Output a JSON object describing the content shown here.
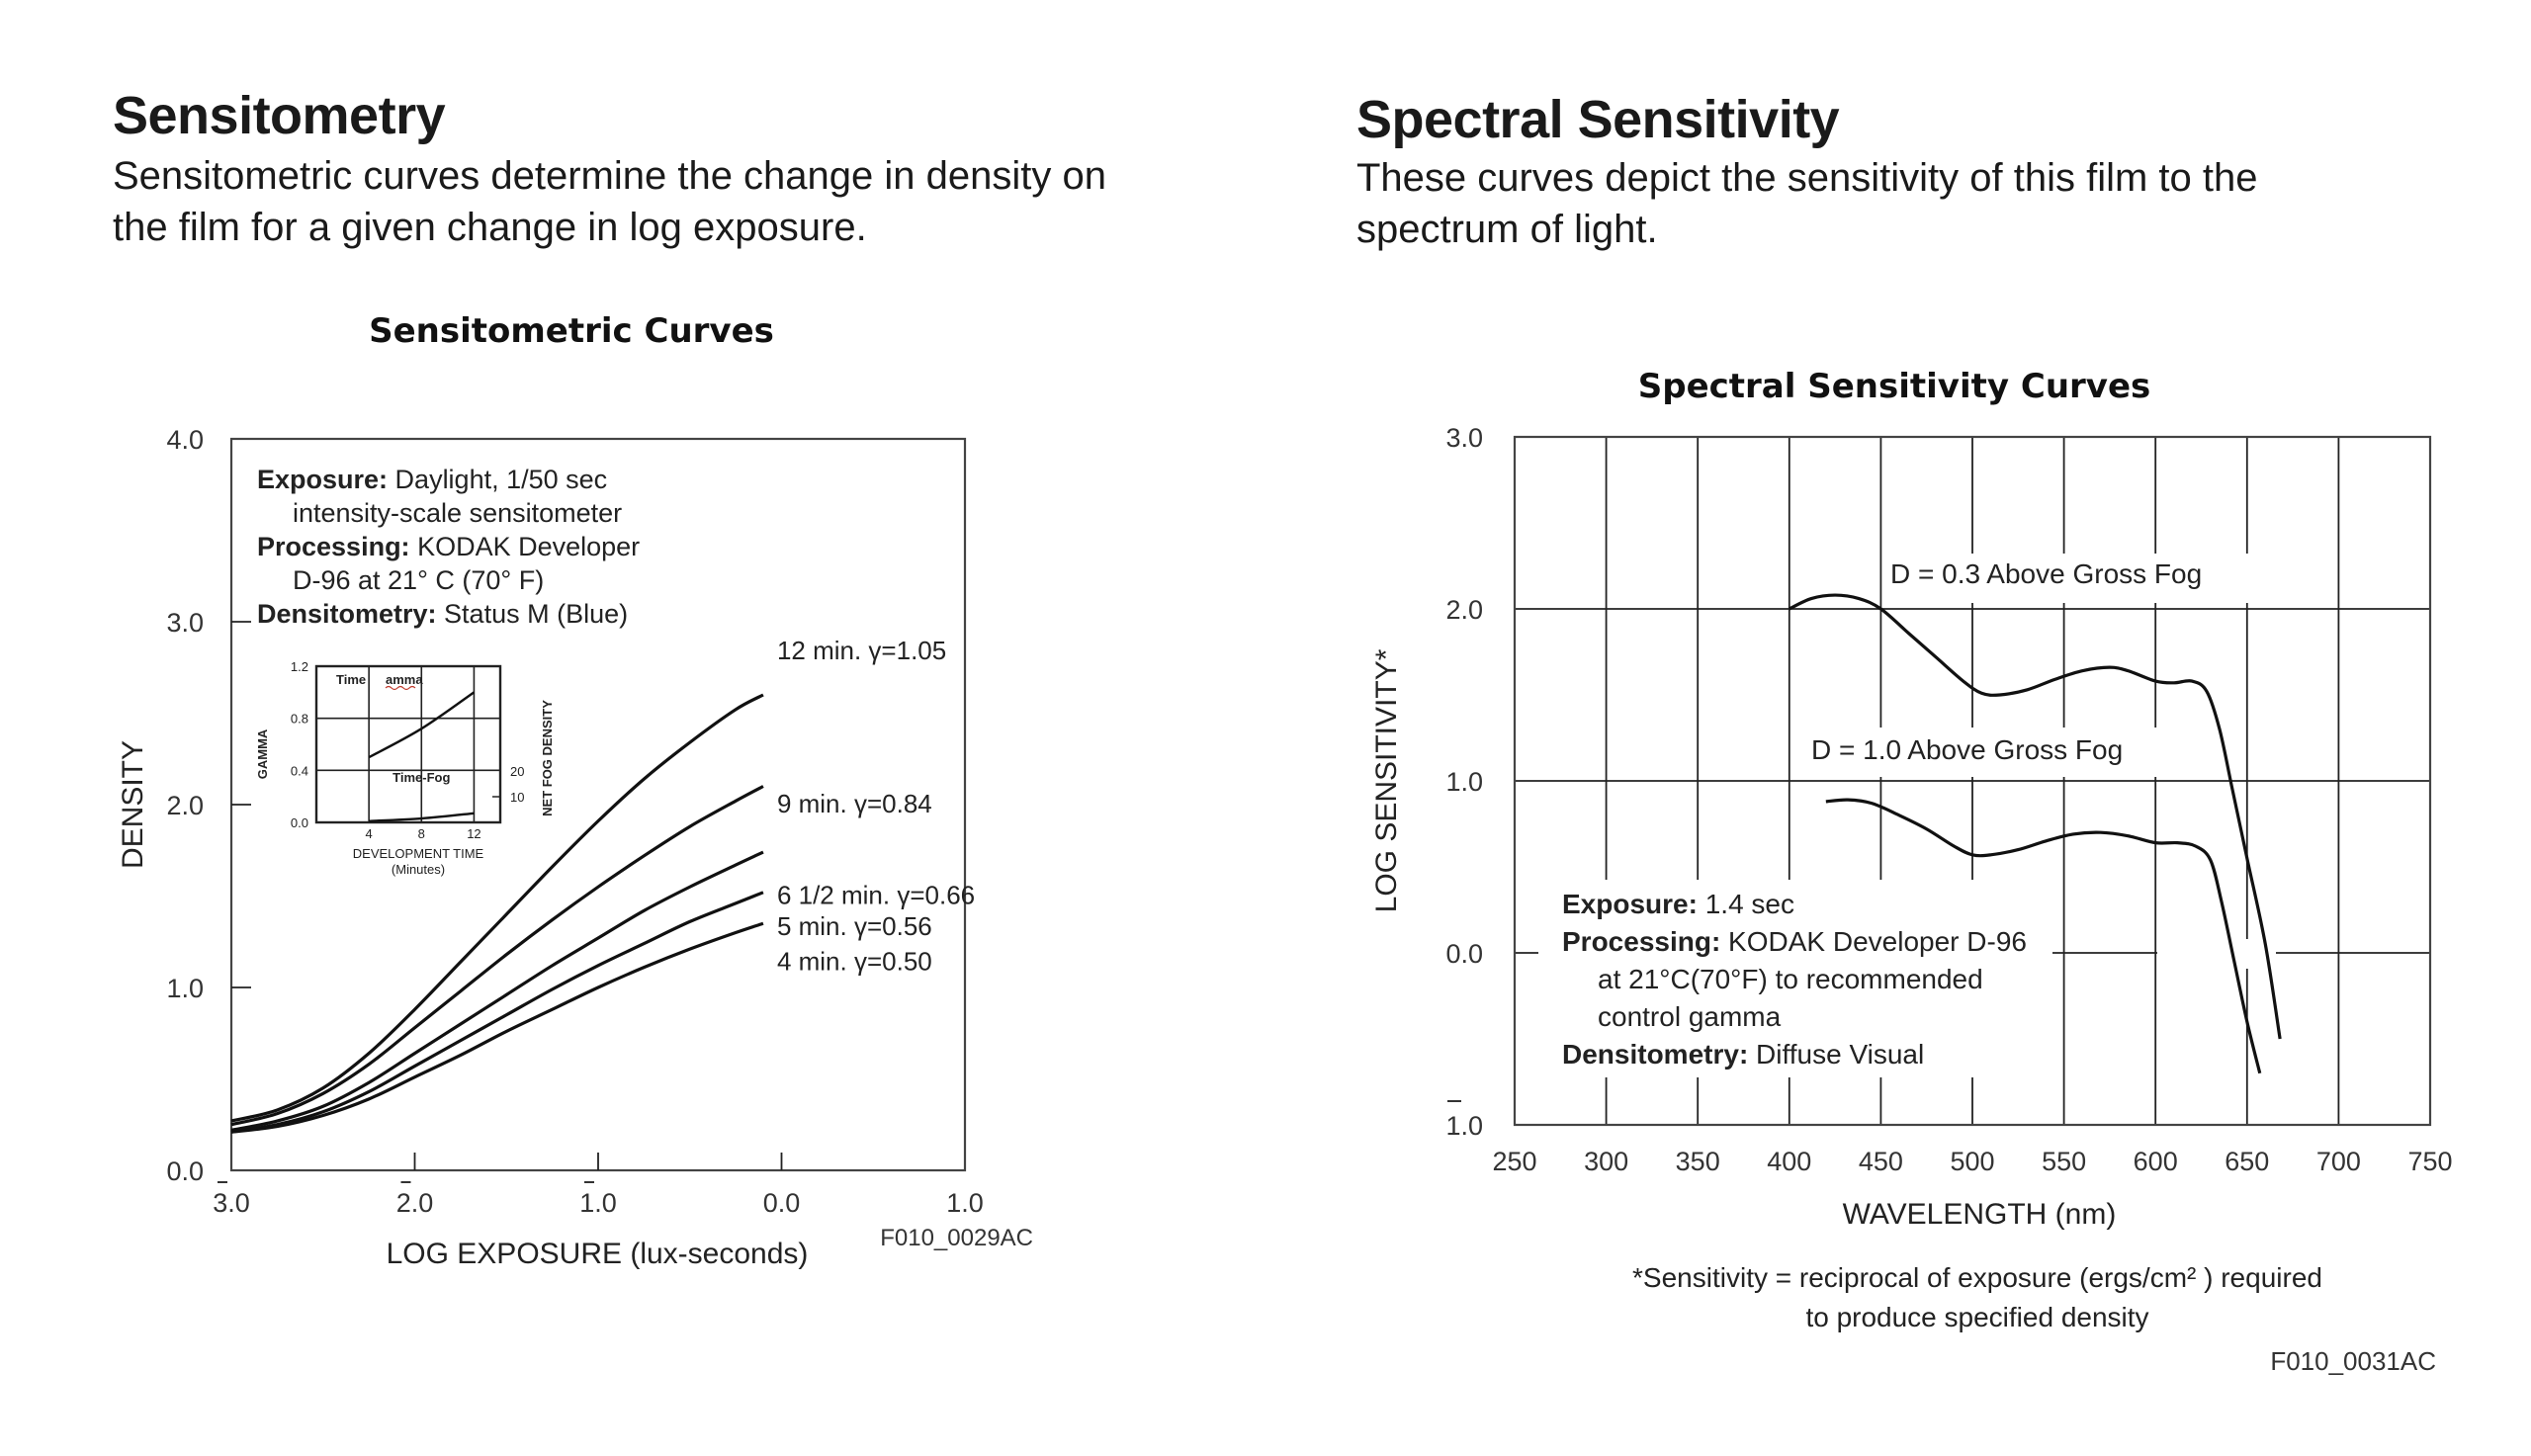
{
  "left_section": {
    "title": "Sensitometry",
    "description_line1": "Sensitometric curves determine the change in density on",
    "description_line2": "the film for a given change in log exposure."
  },
  "right_section": {
    "title": "Spectral Sensitivity",
    "description_line1": "These curves depict the sensitivity of this film to the",
    "description_line2": "spectrum of light."
  },
  "chart_data": [
    {
      "type": "line",
      "title": "Sensitometric Curves",
      "xlabel": "LOG EXPOSURE (lux-seconds)",
      "ylabel": "DENSITY",
      "xlim": [
        -3.0,
        1.0
      ],
      "ylim": [
        0.0,
        4.0
      ],
      "x_ticks": [
        -3,
        -2,
        -1,
        0,
        1
      ],
      "x_tick_labels": [
        {
          "bar": "3",
          "rest": ".0",
          "barred": true
        },
        {
          "bar": "2",
          "rest": ".0",
          "barred": true
        },
        {
          "bar": "1",
          "rest": ".0",
          "barred": true
        },
        {
          "bar": "",
          "rest": "0.0",
          "barred": false
        },
        {
          "bar": "",
          "rest": "1.0",
          "barred": false
        }
      ],
      "y_ticks": [
        0,
        1,
        2,
        3,
        4
      ],
      "y_tick_labels": [
        "0.0",
        "1.0",
        "2.0",
        "3.0",
        "4.0"
      ],
      "grid": false,
      "figure_id": "F010_0029AC",
      "notes": [
        {
          "bold": "Exposure:",
          "text": " Daylight, 1/50 sec"
        },
        {
          "bold": "",
          "text": "intensity-scale  sensitometer"
        },
        {
          "bold": "Processing:",
          "text": " KODAK Developer"
        },
        {
          "bold": "",
          "text": "D-96 at 21° C (70° F)"
        },
        {
          "bold": "Densitometry:",
          "text": " Status M (Blue)"
        }
      ],
      "series": [
        {
          "name": "12 min. γ=1.05",
          "label": "12 min. γ=1.05",
          "x": [
            -3.0,
            -2.75,
            -2.5,
            -2.25,
            -2.0,
            -1.75,
            -1.5,
            -1.25,
            -1.0,
            -0.75,
            -0.5,
            -0.25,
            -0.1
          ],
          "y": [
            0.27,
            0.33,
            0.45,
            0.64,
            0.88,
            1.14,
            1.4,
            1.66,
            1.91,
            2.14,
            2.34,
            2.52,
            2.6
          ]
        },
        {
          "name": "9 min. γ=0.84",
          "label": "9 min. γ=0.84",
          "x": [
            -3.0,
            -2.75,
            -2.5,
            -2.25,
            -2.0,
            -1.75,
            -1.5,
            -1.25,
            -1.0,
            -0.75,
            -0.5,
            -0.25,
            -0.1
          ],
          "y": [
            0.25,
            0.31,
            0.42,
            0.58,
            0.78,
            0.98,
            1.18,
            1.37,
            1.55,
            1.72,
            1.88,
            2.02,
            2.1
          ]
        },
        {
          "name": "6 1/2 min. γ=0.66",
          "label": "6 1/2 min. γ=0.66",
          "x": [
            -3.0,
            -2.75,
            -2.5,
            -2.25,
            -2.0,
            -1.75,
            -1.5,
            -1.25,
            -1.0,
            -0.75,
            -0.5,
            -0.25,
            -0.1
          ],
          "y": [
            0.22,
            0.27,
            0.35,
            0.48,
            0.64,
            0.8,
            0.96,
            1.12,
            1.27,
            1.42,
            1.55,
            1.67,
            1.74
          ]
        },
        {
          "name": "5 min. γ=0.56",
          "label": "5 min. γ=0.56",
          "x": [
            -3.0,
            -2.75,
            -2.5,
            -2.25,
            -2.0,
            -1.75,
            -1.5,
            -1.25,
            -1.0,
            -0.75,
            -0.5,
            -0.25,
            -0.1
          ],
          "y": [
            0.21,
            0.25,
            0.32,
            0.43,
            0.57,
            0.71,
            0.85,
            0.99,
            1.12,
            1.24,
            1.36,
            1.46,
            1.52
          ]
        },
        {
          "name": "4 min. γ=0.50",
          "label": "4 min. γ=0.50",
          "x": [
            -3.0,
            -2.75,
            -2.5,
            -2.25,
            -2.0,
            -1.75,
            -1.5,
            -1.25,
            -1.0,
            -0.75,
            -0.5,
            -0.25,
            -0.1
          ],
          "y": [
            0.21,
            0.24,
            0.3,
            0.39,
            0.51,
            0.63,
            0.76,
            0.88,
            1.0,
            1.11,
            1.21,
            1.3,
            1.35
          ]
        }
      ],
      "inset": {
        "xlabel": "DEVELOPMENT TIME",
        "xlabel2": "(Minutes)",
        "ylabel_left": "GAMMA",
        "ylabel_right": "NET FOG DENSITY",
        "x_ticks": [
          4,
          8,
          12
        ],
        "xlim": [
          0,
          14
        ],
        "y_ticks_left": [
          "0.0",
          "0.4",
          "0.8",
          "1.2"
        ],
        "ylim_left": [
          0,
          1.2
        ],
        "y_ticks_right": [
          "10",
          "20"
        ],
        "label_gamma": "Time",
        "label_gamma_2": "amma",
        "label_fog": "Time-Fog",
        "gamma_curve": {
          "x": [
            4,
            8,
            12
          ],
          "y": [
            0.5,
            0.72,
            1.0
          ]
        },
        "fog_curve": {
          "x": [
            4,
            8,
            12
          ],
          "y": [
            0.01,
            0.03,
            0.07
          ]
        }
      }
    },
    {
      "type": "line",
      "title": "Spectral Sensitivity Curves",
      "xlabel": "WAVELENGTH (nm)",
      "ylabel": "LOG SENSITIVITY*",
      "xlim": [
        250,
        750
      ],
      "ylim": [
        -1.0,
        3.0
      ],
      "x_ticks": [
        250,
        300,
        350,
        400,
        450,
        500,
        550,
        600,
        650,
        700,
        750
      ],
      "y_ticks": [
        -1,
        0,
        1,
        2,
        3
      ],
      "y_tick_labels": [
        {
          "bar": "1",
          "rest": ".0",
          "barred": true
        },
        {
          "bar": "",
          "rest": "0.0",
          "barred": false
        },
        {
          "bar": "",
          "rest": "1.0",
          "barred": false
        },
        {
          "bar": "",
          "rest": "2.0",
          "barred": false
        },
        {
          "bar": "",
          "rest": "3.0",
          "barred": false
        }
      ],
      "grid": true,
      "figure_id": "F010_0031AC",
      "footnote_line1": "*Sensitivity = reciprocal of exposure (ergs/cm² ) required",
      "footnote_line2": "to produce specified density",
      "notes": [
        {
          "bold": "Exposure:",
          "text": " 1.4 sec"
        },
        {
          "bold": "Processing:",
          "text": " KODAK Developer D-96"
        },
        {
          "bold": "",
          "text": "at 21°C(70°F) to recommended"
        },
        {
          "bold": "",
          "text": "control gamma"
        },
        {
          "bold": "Densitometry:",
          "text": " Diffuse Visual"
        }
      ],
      "series": [
        {
          "name": "D = 0.3 Above Gross Fog",
          "label": "D = 0.3 Above Gross Fog",
          "x": [
            400,
            412,
            425,
            438,
            450,
            465,
            480,
            495,
            505,
            515,
            530,
            545,
            560,
            575,
            585,
            600,
            610,
            620,
            628,
            635,
            642,
            650,
            660,
            668
          ],
          "y": [
            2.0,
            2.06,
            2.08,
            2.06,
            2.0,
            1.86,
            1.72,
            1.58,
            1.51,
            1.5,
            1.53,
            1.59,
            1.64,
            1.66,
            1.64,
            1.58,
            1.57,
            1.58,
            1.52,
            1.3,
            0.95,
            0.55,
            0.05,
            -0.5
          ]
        },
        {
          "name": "D = 1.0 Above Gross Fog",
          "label": "D = 1.0 Above Gross Fog",
          "x": [
            420,
            432,
            445,
            460,
            475,
            490,
            500,
            510,
            525,
            540,
            555,
            570,
            585,
            600,
            612,
            622,
            630,
            636,
            643,
            650,
            657
          ],
          "y": [
            0.88,
            0.89,
            0.87,
            0.8,
            0.72,
            0.62,
            0.57,
            0.57,
            0.6,
            0.65,
            0.69,
            0.7,
            0.68,
            0.64,
            0.64,
            0.62,
            0.54,
            0.3,
            -0.05,
            -0.4,
            -0.7
          ]
        }
      ]
    }
  ]
}
